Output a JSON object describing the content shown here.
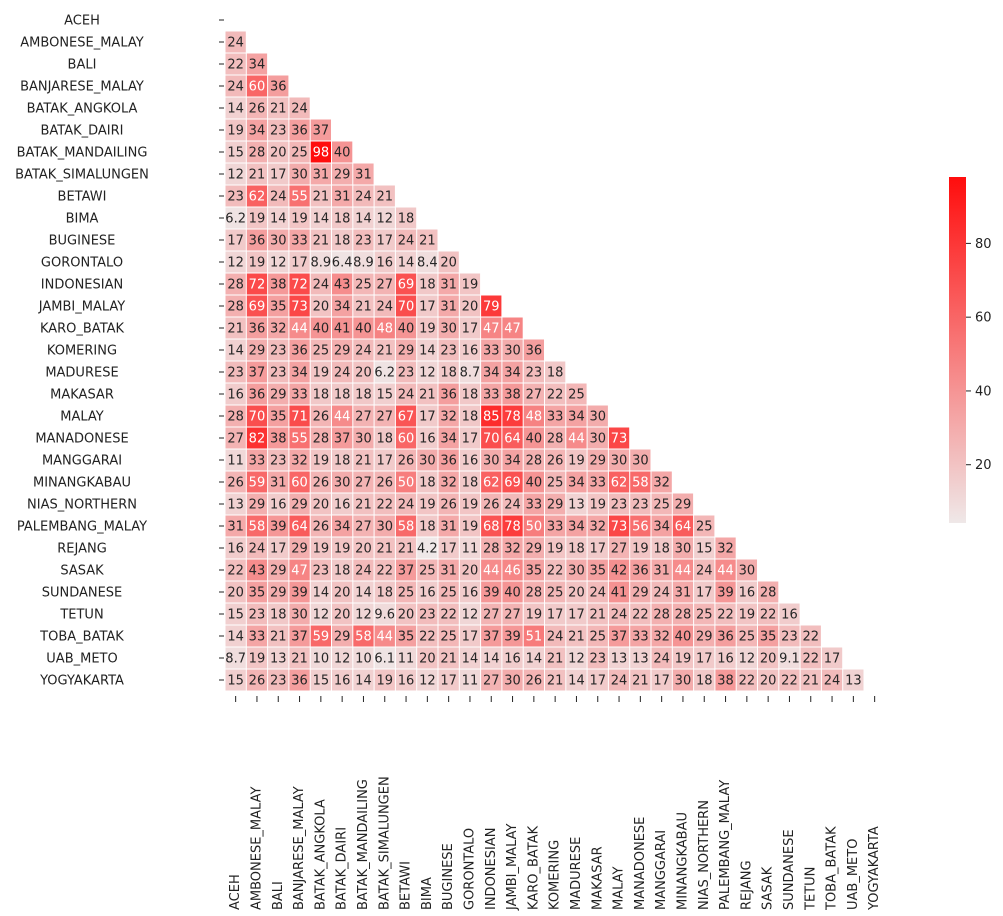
{
  "chart_data": {
    "type": "heatmap",
    "title": "",
    "xlabel": "",
    "ylabel": "",
    "mask": "upper-triangle",
    "annotated": true,
    "categories": [
      "ACEH",
      "AMBONESE_MALAY",
      "BALI",
      "BANJARESE_MALAY",
      "BATAK_ANGKOLA",
      "BATAK_DAIRI",
      "BATAK_MANDAILING",
      "BATAK_SIMALUNGEN",
      "BETAWI",
      "BIMA",
      "BUGINESE",
      "GORONTALO",
      "INDONESIAN",
      "JAMBI_MALAY",
      "KARO_BATAK",
      "KOMERING",
      "MADURESE",
      "MAKASAR",
      "MALAY",
      "MANADONESE",
      "MANGGARAI",
      "MINANGKABAU",
      "NIAS_NORTHERN",
      "PALEMBANG_MALAY",
      "REJANG",
      "SASAK",
      "SUNDANESE",
      "TETUN",
      "TOBA_BATAK",
      "UAB_METO",
      "YOGYAKARTA"
    ],
    "values": [
      [],
      [
        24
      ],
      [
        22,
        34
      ],
      [
        24,
        60,
        36
      ],
      [
        14,
        26,
        21,
        24
      ],
      [
        19,
        34,
        23,
        36,
        37
      ],
      [
        15,
        28,
        20,
        25,
        98,
        40
      ],
      [
        12,
        21,
        17,
        30,
        31,
        29,
        31
      ],
      [
        23,
        62,
        24,
        55,
        21,
        31,
        24,
        21
      ],
      [
        6.2,
        19,
        14,
        19,
        14,
        18,
        14,
        12,
        18
      ],
      [
        17,
        36,
        30,
        33,
        21,
        18,
        23,
        17,
        24,
        21
      ],
      [
        12,
        19,
        12,
        17,
        8.9,
        6.4,
        8.9,
        16,
        14,
        8.4,
        20
      ],
      [
        28,
        72,
        38,
        72,
        24,
        43,
        25,
        27,
        69,
        18,
        31,
        19
      ],
      [
        28,
        69,
        35,
        73,
        20,
        34,
        21,
        24,
        70,
        17,
        31,
        20,
        79
      ],
      [
        21,
        36,
        32,
        44,
        40,
        41,
        40,
        48,
        40,
        19,
        30,
        17,
        47,
        47
      ],
      [
        14,
        29,
        23,
        36,
        25,
        29,
        24,
        21,
        29,
        14,
        23,
        16,
        33,
        30,
        36
      ],
      [
        23,
        37,
        23,
        34,
        19,
        24,
        20,
        6.2,
        23,
        12,
        18,
        8.7,
        34,
        34,
        23,
        18
      ],
      [
        16,
        36,
        29,
        33,
        18,
        18,
        18,
        15,
        24,
        21,
        36,
        18,
        33,
        38,
        27,
        22,
        25
      ],
      [
        28,
        70,
        35,
        71,
        26,
        44,
        27,
        27,
        67,
        17,
        32,
        18,
        85,
        78,
        48,
        33,
        34,
        30
      ],
      [
        27,
        82,
        38,
        55,
        28,
        37,
        30,
        18,
        60,
        16,
        34,
        17,
        70,
        64,
        40,
        28,
        44,
        30,
        73
      ],
      [
        11,
        33,
        23,
        32,
        19,
        18,
        21,
        17,
        26,
        30,
        36,
        16,
        30,
        34,
        28,
        26,
        19,
        29,
        30,
        30
      ],
      [
        26,
        59,
        31,
        60,
        26,
        30,
        27,
        26,
        50,
        18,
        32,
        18,
        62,
        69,
        40,
        25,
        34,
        33,
        62,
        58,
        32
      ],
      [
        13,
        29,
        16,
        29,
        20,
        16,
        21,
        22,
        24,
        19,
        26,
        19,
        26,
        24,
        33,
        29,
        13,
        19,
        23,
        23,
        25,
        29
      ],
      [
        31,
        58,
        39,
        64,
        26,
        34,
        27,
        30,
        58,
        18,
        31,
        19,
        68,
        78,
        50,
        33,
        34,
        32,
        73,
        56,
        34,
        64,
        25
      ],
      [
        16,
        24,
        17,
        29,
        19,
        19,
        20,
        21,
        21,
        4.2,
        17,
        11,
        28,
        32,
        29,
        19,
        18,
        17,
        27,
        19,
        18,
        30,
        15,
        32
      ],
      [
        22,
        43,
        29,
        47,
        23,
        18,
        24,
        22,
        37,
        25,
        31,
        20,
        44,
        46,
        35,
        22,
        30,
        35,
        42,
        36,
        31,
        44,
        24,
        44,
        30
      ],
      [
        20,
        35,
        29,
        39,
        14,
        20,
        14,
        18,
        25,
        16,
        25,
        16,
        39,
        40,
        28,
        25,
        20,
        24,
        41,
        29,
        24,
        31,
        17,
        39,
        16,
        28
      ],
      [
        15,
        23,
        18,
        30,
        12,
        20,
        12,
        9.6,
        20,
        23,
        22,
        12,
        27,
        27,
        19,
        17,
        17,
        21,
        24,
        22,
        28,
        28,
        25,
        22,
        19,
        22,
        16
      ],
      [
        14,
        33,
        21,
        37,
        59,
        29,
        58,
        44,
        35,
        22,
        25,
        17,
        37,
        39,
        51,
        24,
        21,
        25,
        37,
        33,
        32,
        40,
        29,
        36,
        25,
        35,
        23,
        22
      ],
      [
        8.7,
        19,
        13,
        21,
        10,
        12,
        10,
        6.1,
        11,
        20,
        21,
        14,
        14,
        16,
        14,
        21,
        12,
        23,
        13,
        13,
        24,
        19,
        17,
        16,
        12,
        20,
        9.1,
        22,
        17
      ],
      [
        15,
        26,
        23,
        36,
        15,
        16,
        14,
        19,
        16,
        12,
        17,
        11,
        27,
        30,
        26,
        21,
        14,
        17,
        24,
        21,
        17,
        30,
        18,
        38,
        22,
        20,
        22,
        21,
        24,
        13
      ]
    ],
    "colorbar": {
      "ticks": [
        20,
        40,
        60,
        80
      ],
      "range": [
        4.2,
        98
      ]
    },
    "colors": {
      "low": "#efe8e8",
      "high": "#ff0d0d",
      "dark_text": "#262626",
      "light_text": "#ffffff"
    }
  }
}
